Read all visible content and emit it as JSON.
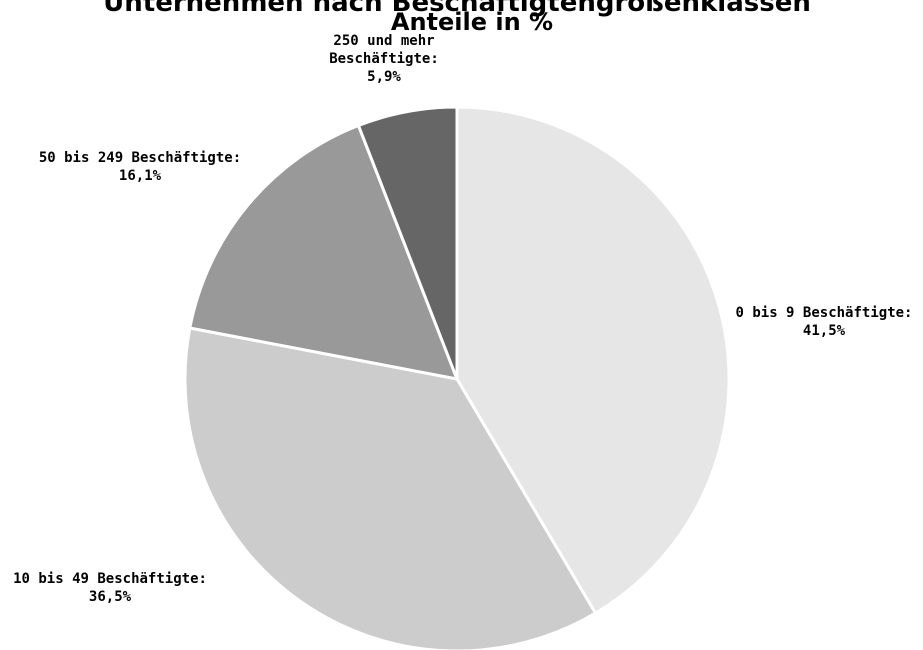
{
  "chart_data": {
    "type": "pie",
    "title": "Unternehmen nach Beschäftigtengrößenklassen",
    "subtitle": "Anteile in %",
    "categories": [
      "0 bis 9 Beschäftigte",
      "10 bis 49 Beschäftigte",
      "50 bis 249 Beschäftigte",
      "250 und mehr Beschäftigte"
    ],
    "values": [
      41.5,
      36.5,
      16.1,
      5.9
    ],
    "unit": "%",
    "labels": [
      [
        "0 bis 9 Beschäftigte:",
        "41,5%"
      ],
      [
        "10 bis 49 Beschäftigte:",
        "36,5%"
      ],
      [
        "50 bis 249 Beschäftigte:",
        "16,1%"
      ],
      [
        "250 und mehr",
        "Beschäftigte:",
        "5,9%"
      ]
    ],
    "colors": [
      "#e6e6e6",
      "#cccccc",
      "#999999",
      "#666666"
    ],
    "legend": "none",
    "start": "top, clockwise"
  }
}
